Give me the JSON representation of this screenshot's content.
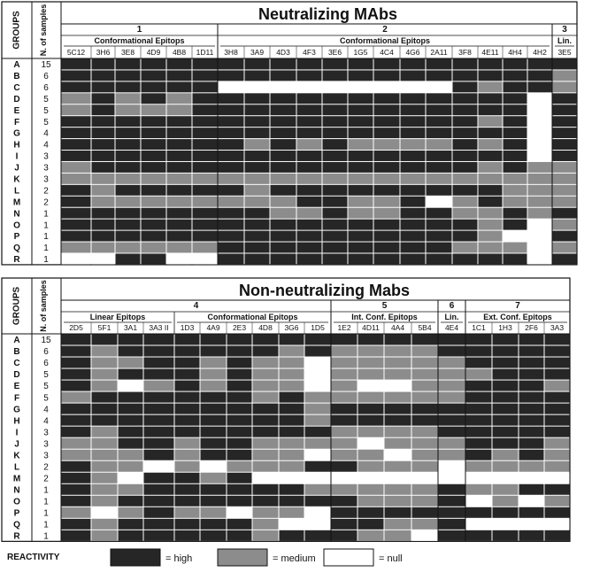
{
  "chart_data": [
    {
      "type": "heatmap",
      "title": "Neutralizing MAbs",
      "row_header": "GROUPS",
      "count_header": "N. of samples",
      "rows": [
        "A",
        "B",
        "C",
        "D",
        "E",
        "F",
        "G",
        "H",
        "I",
        "J",
        "K",
        "L",
        "M",
        "N",
        "O",
        "P",
        "Q",
        "R"
      ],
      "samples": [
        "15",
        "6",
        "6",
        "5",
        "5",
        "5",
        "4",
        "4",
        "3",
        "3",
        "3",
        "2",
        "2",
        "1",
        "1",
        "1",
        "1",
        "1"
      ],
      "groups": [
        {
          "label": "1",
          "subgroups": [
            {
              "label": "Conformational Epitops",
              "columns": [
                "5C12",
                "3H6",
                "3E8",
                "4D9",
                "4B8",
                "1D11"
              ]
            }
          ]
        },
        {
          "label": "2",
          "subgroups": [
            {
              "label": "Conformational Epitops",
              "columns": [
                "3H8",
                "3A9",
                "4D3",
                "4F3",
                "3E6",
                "1G5",
                "4C4",
                "4G6",
                "2A11",
                "3F8",
                "4E11",
                "4H4",
                "4H2"
              ]
            }
          ]
        },
        {
          "label": "3",
          "subgroups": [
            {
              "label": "Lin.",
              "columns": [
                "3E5"
              ]
            }
          ]
        }
      ],
      "column_widths": [
        34,
        27,
        29,
        29,
        29,
        29,
        30,
        29,
        30,
        29,
        29,
        29,
        30,
        29,
        30,
        29,
        28,
        28,
        28,
        28
      ],
      "values": [
        [
          2,
          2,
          2,
          2,
          2,
          2,
          2,
          2,
          2,
          2,
          2,
          2,
          2,
          2,
          2,
          2,
          2,
          2,
          2,
          2
        ],
        [
          2,
          2,
          2,
          2,
          2,
          2,
          2,
          2,
          2,
          2,
          2,
          2,
          2,
          2,
          2,
          2,
          2,
          2,
          2,
          1
        ],
        [
          2,
          2,
          2,
          2,
          2,
          2,
          0,
          0,
          0,
          0,
          0,
          0,
          0,
          0,
          0,
          2,
          1,
          2,
          2,
          1
        ],
        [
          1,
          2,
          1,
          2,
          1,
          2,
          2,
          2,
          2,
          2,
          2,
          2,
          2,
          2,
          2,
          2,
          2,
          2,
          0,
          2
        ],
        [
          1,
          2,
          1,
          1,
          1,
          2,
          2,
          2,
          2,
          2,
          2,
          2,
          2,
          2,
          2,
          2,
          2,
          2,
          0,
          2
        ],
        [
          2,
          2,
          2,
          2,
          2,
          2,
          2,
          2,
          2,
          2,
          2,
          2,
          2,
          2,
          2,
          2,
          1,
          2,
          0,
          2
        ],
        [
          2,
          2,
          2,
          2,
          2,
          2,
          2,
          2,
          2,
          2,
          2,
          2,
          2,
          2,
          2,
          2,
          2,
          2,
          0,
          2
        ],
        [
          2,
          2,
          2,
          2,
          2,
          2,
          2,
          1,
          2,
          1,
          2,
          1,
          1,
          1,
          1,
          2,
          1,
          2,
          0,
          2
        ],
        [
          2,
          2,
          2,
          2,
          2,
          2,
          2,
          2,
          2,
          2,
          2,
          2,
          2,
          2,
          2,
          2,
          2,
          2,
          0,
          2
        ],
        [
          1,
          2,
          2,
          2,
          2,
          2,
          2,
          2,
          2,
          2,
          2,
          2,
          2,
          2,
          2,
          2,
          1,
          2,
          1,
          1
        ],
        [
          1,
          1,
          1,
          1,
          1,
          1,
          1,
          1,
          1,
          1,
          1,
          1,
          1,
          1,
          1,
          1,
          1,
          1,
          1,
          1
        ],
        [
          2,
          1,
          2,
          2,
          2,
          2,
          2,
          1,
          2,
          2,
          2,
          2,
          2,
          2,
          2,
          2,
          2,
          1,
          1,
          1
        ],
        [
          2,
          1,
          1,
          1,
          1,
          1,
          1,
          1,
          1,
          2,
          2,
          1,
          1,
          2,
          0,
          1,
          2,
          1,
          1,
          1
        ],
        [
          2,
          2,
          2,
          2,
          2,
          2,
          2,
          2,
          1,
          1,
          2,
          1,
          1,
          2,
          2,
          1,
          1,
          2,
          1,
          2
        ],
        [
          2,
          2,
          2,
          2,
          2,
          2,
          2,
          2,
          2,
          2,
          2,
          2,
          2,
          2,
          2,
          2,
          1,
          2,
          0,
          1
        ],
        [
          2,
          2,
          2,
          2,
          2,
          2,
          2,
          2,
          2,
          2,
          2,
          2,
          2,
          2,
          2,
          2,
          1,
          0,
          0,
          2
        ],
        [
          1,
          1,
          1,
          1,
          1,
          1,
          2,
          2,
          2,
          2,
          2,
          2,
          2,
          2,
          2,
          1,
          1,
          1,
          0,
          1
        ],
        [
          0,
          0,
          2,
          2,
          0,
          0,
          2,
          2,
          2,
          2,
          2,
          2,
          2,
          2,
          2,
          2,
          2,
          2,
          0,
          2
        ]
      ]
    },
    {
      "type": "heatmap",
      "title": "Non-neutralizing Mabs",
      "row_header": "GROUPS",
      "count_header": "N. of samples",
      "rows": [
        "A",
        "B",
        "C",
        "D",
        "E",
        "F",
        "G",
        "H",
        "I",
        "J",
        "K",
        "L",
        "M",
        "N",
        "O",
        "P",
        "Q",
        "R"
      ],
      "samples": [
        "15",
        "6",
        "6",
        "5",
        "5",
        "5",
        "4",
        "4",
        "3",
        "3",
        "3",
        "2",
        "2",
        "1",
        "1",
        "1",
        "1",
        "1"
      ],
      "groups": [
        {
          "label": "4",
          "subgroups": [
            {
              "label": "Linear Epitops",
              "columns": [
                "2D5",
                "5F1",
                "3A1",
                "3A3 II"
              ]
            },
            {
              "label": "Conformational Epitops",
              "columns": [
                "1D3",
                "4A9",
                "2E3",
                "4D8",
                "3G6",
                "1D5"
              ]
            }
          ]
        },
        {
          "label": "5",
          "subgroups": [
            {
              "label": "Int. Conf. Epitops",
              "columns": [
                "1E2",
                "4D11",
                "4A4",
                "5B4"
              ]
            }
          ]
        },
        {
          "label": "6",
          "subgroups": [
            {
              "label": "Lin.",
              "columns": [
                "4E4"
              ]
            }
          ]
        },
        {
          "label": "7",
          "subgroups": [
            {
              "label": "Ext. Conf. Epitops",
              "columns": [
                "1C1",
                "1H3",
                "2F6",
                "3A3"
              ]
            }
          ]
        }
      ],
      "column_widths": [
        34,
        30,
        29,
        35,
        29,
        30,
        29,
        30,
        29,
        30,
        30,
        30,
        31,
        30,
        31,
        30,
        30,
        29,
        29
      ],
      "values": [
        [
          2,
          2,
          2,
          2,
          2,
          2,
          2,
          2,
          2,
          2,
          2,
          2,
          2,
          2,
          2,
          2,
          2,
          2,
          2
        ],
        [
          2,
          1,
          2,
          2,
          2,
          2,
          2,
          2,
          1,
          2,
          1,
          1,
          1,
          1,
          2,
          2,
          2,
          2,
          2
        ],
        [
          2,
          1,
          1,
          2,
          2,
          1,
          2,
          1,
          1,
          0,
          1,
          1,
          1,
          1,
          1,
          2,
          2,
          2,
          2
        ],
        [
          2,
          1,
          2,
          2,
          2,
          1,
          2,
          1,
          1,
          0,
          1,
          1,
          1,
          1,
          1,
          1,
          2,
          2,
          2
        ],
        [
          2,
          1,
          0,
          1,
          2,
          1,
          2,
          1,
          1,
          0,
          1,
          0,
          0,
          1,
          1,
          2,
          2,
          2,
          1
        ],
        [
          1,
          2,
          2,
          2,
          2,
          2,
          2,
          1,
          2,
          1,
          1,
          1,
          1,
          1,
          1,
          2,
          2,
          2,
          2
        ],
        [
          2,
          2,
          2,
          2,
          2,
          2,
          2,
          2,
          2,
          1,
          2,
          2,
          2,
          2,
          2,
          2,
          2,
          2,
          2
        ],
        [
          2,
          2,
          2,
          2,
          2,
          2,
          2,
          2,
          2,
          1,
          2,
          2,
          2,
          2,
          2,
          2,
          2,
          2,
          2
        ],
        [
          2,
          1,
          2,
          2,
          2,
          2,
          2,
          2,
          2,
          2,
          1,
          1,
          1,
          1,
          2,
          2,
          2,
          2,
          2
        ],
        [
          1,
          1,
          2,
          2,
          1,
          2,
          2,
          1,
          1,
          1,
          1,
          0,
          1,
          1,
          1,
          2,
          2,
          2,
          1
        ],
        [
          1,
          1,
          1,
          2,
          1,
          2,
          2,
          1,
          1,
          0,
          1,
          1,
          0,
          1,
          1,
          2,
          1,
          2,
          1
        ],
        [
          2,
          1,
          1,
          0,
          1,
          0,
          1,
          1,
          1,
          2,
          2,
          1,
          1,
          1,
          0,
          1,
          1,
          1,
          1
        ],
        [
          2,
          1,
          0,
          2,
          2,
          1,
          2,
          0,
          0,
          0,
          0,
          0,
          0,
          0,
          0,
          0,
          0,
          0,
          0
        ],
        [
          2,
          1,
          1,
          2,
          2,
          2,
          2,
          2,
          2,
          1,
          1,
          1,
          1,
          1,
          2,
          1,
          1,
          2,
          2
        ],
        [
          2,
          1,
          2,
          2,
          2,
          2,
          2,
          2,
          2,
          2,
          2,
          1,
          1,
          1,
          2,
          0,
          1,
          0,
          1
        ],
        [
          1,
          0,
          1,
          2,
          1,
          1,
          0,
          1,
          1,
          0,
          2,
          2,
          2,
          2,
          2,
          2,
          2,
          2,
          2
        ],
        [
          2,
          1,
          2,
          2,
          2,
          2,
          2,
          1,
          0,
          0,
          2,
          2,
          1,
          1,
          2,
          0,
          0,
          0,
          0
        ],
        [
          2,
          1,
          2,
          2,
          2,
          2,
          2,
          1,
          2,
          2,
          2,
          1,
          1,
          0,
          2,
          2,
          2,
          2,
          2
        ]
      ]
    }
  ],
  "legend": {
    "title": "REACTIVITY",
    "items": [
      {
        "label": "= high",
        "color": "#262626"
      },
      {
        "label": "= medium",
        "color": "#8c8c8c"
      },
      {
        "label": "= null",
        "color": "#ffffff"
      }
    ]
  },
  "colors": {
    "null": "#ffffff",
    "medium": "#8c8c8c",
    "high": "#262626",
    "text": "#111111"
  }
}
